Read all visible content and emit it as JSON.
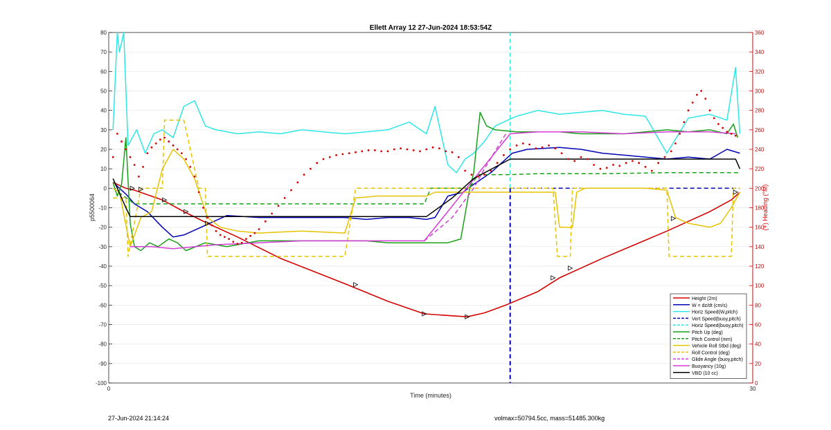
{
  "chart_data": {
    "type": "line",
    "title": "Ellett Array 12 27-Jun-2024 18:53:54Z",
    "xlabel": "Time (minutes)",
    "ylabel": "p5500064",
    "y2label": "(+) Heading (°M)",
    "xlim": [
      0,
      30
    ],
    "ylim": [
      -100,
      80
    ],
    "y2lim": [
      0,
      360
    ],
    "x_ticks": [
      0,
      30
    ],
    "y_ticks": [
      80,
      70,
      60,
      50,
      40,
      30,
      20,
      10,
      0,
      -10,
      -20,
      -30,
      -40,
      -50,
      -60,
      -70,
      -80,
      -90,
      -100
    ],
    "y2_ticks": [
      360,
      340,
      320,
      300,
      280,
      260,
      240,
      220,
      200,
      180,
      160,
      140,
      120,
      100,
      80,
      60,
      40,
      20,
      0
    ],
    "grid": true,
    "legend_position": "bottom-right",
    "vertical_marker_x": 18.7,
    "series": [
      {
        "name": "Height (2m)",
        "color": "#d40000",
        "style": "solid",
        "axis": "left",
        "x": [
          0.2,
          0.8,
          1.2,
          2.5,
          3.5,
          4.6,
          6.0,
          8.0,
          11.0,
          13.0,
          14.7,
          16.0,
          16.7,
          17.5,
          18.5,
          20.0,
          21.0,
          22.0,
          23.0,
          24.5,
          26.0,
          27.0,
          28.0,
          29.0,
          29.4
        ],
        "y": [
          3,
          0,
          -1,
          -6,
          -12,
          -18,
          -25,
          -36,
          -49,
          -58,
          -64.5,
          -65.5,
          -66,
          -64,
          -60,
          -53,
          -46,
          -41,
          -36,
          -29,
          -22,
          -17,
          -12,
          -6,
          -2
        ]
      },
      {
        "name": "W = dz/dt (cm/s)",
        "color": "#0000b4",
        "style": "solid",
        "axis": "left",
        "x": [
          0.3,
          0.8,
          1.2,
          1.8,
          2.5,
          3.0,
          3.5,
          4.5,
          5.5,
          7.0,
          9.0,
          11.0,
          12.0,
          13.0,
          14.0,
          14.8,
          15.2,
          15.8,
          16.5,
          17.0,
          17.8,
          18.8,
          19.5,
          21.0,
          22.0,
          23.0,
          24.0,
          25.0,
          26.0,
          27.0,
          28.0,
          28.8,
          29.4
        ],
        "y": [
          2,
          -3,
          -8,
          -12,
          -20,
          -25,
          -24,
          -19,
          -14,
          -15,
          -15,
          -15,
          -16,
          -15,
          -15,
          -16,
          -15,
          -4,
          -2,
          2,
          8,
          18,
          20,
          21,
          20,
          18,
          17,
          16,
          15,
          16,
          15,
          20,
          18
        ]
      },
      {
        "name": "Horiz Speed(W,pitch)",
        "color": "#2ee6e6",
        "style": "solid",
        "axis": "left",
        "x": [
          0.2,
          0.4,
          0.5,
          0.7,
          0.9,
          1.3,
          1.7,
          2.1,
          2.5,
          3.0,
          3.5,
          4.0,
          4.5,
          5.0,
          6.0,
          7.0,
          8.0,
          9.0,
          10.0,
          11.0,
          12.0,
          13.0,
          14.0,
          14.8,
          15.2,
          15.8,
          16.2,
          16.6,
          17.0,
          17.5,
          18.0,
          19.0,
          20.0,
          21.0,
          22.0,
          23.0,
          24.0,
          25.0,
          26.0,
          27.0,
          28.0,
          28.8,
          29.2,
          29.4
        ],
        "y": [
          30,
          80,
          70,
          80,
          22,
          30,
          18,
          28,
          30,
          26,
          42,
          45,
          32,
          30,
          28,
          29,
          28,
          30,
          29,
          28,
          29,
          30,
          34,
          28,
          42,
          12,
          8,
          15,
          18,
          24,
          32,
          37,
          40,
          38,
          39,
          40,
          38,
          37,
          18,
          36,
          38,
          35,
          62,
          28
        ]
      },
      {
        "name": "Vert Speed(buoy,pitch)",
        "color": "#0000b4",
        "style": "dashed",
        "axis": "left",
        "x": [
          18.7,
          29.4
        ],
        "y": [
          0,
          0
        ]
      },
      {
        "name": "Horiz Speed(buoy,pitch)",
        "color": "#2ee6e6",
        "style": "dashed",
        "axis": "left",
        "x": [
          18.7,
          18.7
        ],
        "y": [
          0,
          80
        ]
      },
      {
        "name": "Pitch Up (deg)",
        "color": "#17a017",
        "style": "solid",
        "axis": "left",
        "x": [
          0.2,
          0.4,
          0.6,
          0.8,
          1.0,
          1.2,
          1.5,
          1.9,
          2.3,
          2.8,
          3.2,
          3.6,
          4.5,
          5.5,
          7.0,
          9.0,
          11.0,
          12.0,
          13.0,
          14.0,
          14.8,
          15.3,
          15.8,
          16.4,
          16.8,
          17.0,
          17.3,
          17.6,
          18.0,
          19.0,
          20.0,
          21.0,
          22.0,
          23.0,
          24.0,
          25.0,
          26.0,
          27.0,
          28.0,
          28.8,
          29.1,
          29.3
        ],
        "y": [
          3,
          -4,
          2,
          26,
          -18,
          -30,
          -32,
          -28,
          -30,
          -26,
          -28,
          -32,
          -28,
          -30,
          -27,
          -27,
          -27,
          -27,
          -28,
          -28,
          -28,
          -28,
          -28,
          -26,
          -1,
          8,
          39,
          32,
          30,
          29,
          29,
          29,
          28,
          28,
          28,
          29,
          30,
          29,
          30,
          28,
          33,
          26
        ]
      },
      {
        "name": "Pitch Control (mm)",
        "color": "#17a017",
        "style": "dashed",
        "axis": "left",
        "x": [
          0.2,
          1.2,
          3.0,
          7.0,
          11.0,
          14.7,
          15.0,
          16.8,
          17.2,
          18.7,
          20.0,
          23.0,
          26.0,
          29.4
        ],
        "y": [
          0,
          -8,
          -8,
          -8,
          -8,
          -8,
          0,
          0,
          7,
          7,
          7.5,
          7.5,
          8,
          8
        ]
      },
      {
        "name": "Vehicle Roll Stbd (deg)",
        "color": "#e6c200",
        "style": "solid",
        "axis": "left",
        "x": [
          0.2,
          0.5,
          1.0,
          1.5,
          2.0,
          2.5,
          3.0,
          3.5,
          4.0,
          4.6,
          5.2,
          6.0,
          7.0,
          9.0,
          11.0,
          11.5,
          12.5,
          14.0,
          14.8,
          15.2,
          16.0,
          17.0,
          18.0,
          19.0,
          20.0,
          20.8,
          21.0,
          21.6,
          21.8,
          22.2,
          23.0,
          24.0,
          25.0,
          26.0,
          26.4,
          27.0,
          28.0,
          28.5,
          29.0,
          29.4
        ],
        "y": [
          0,
          -2,
          -30,
          -15,
          -12,
          10,
          20,
          15,
          5,
          -15,
          -20,
          -22,
          -23,
          -22,
          -23,
          -5,
          -4,
          -4,
          -4,
          -2,
          -2,
          -2,
          -2,
          -2,
          -2,
          -2,
          -20,
          -20,
          -2,
          0,
          0,
          0,
          0,
          -1,
          -15,
          -18,
          -20,
          -18,
          -10,
          -2
        ]
      },
      {
        "name": "Roll Control (deg)",
        "color": "#e6c200",
        "style": "dashed",
        "axis": "left",
        "x": [
          0.2,
          0.8,
          0.9,
          1.5,
          2.5,
          2.6,
          3.5,
          4.2,
          4.5,
          4.6,
          5.5,
          6.0,
          11.0,
          11.5,
          14.7,
          15.0,
          20.7,
          20.9,
          21.5,
          21.6,
          26.0,
          26.1,
          29.0,
          29.1,
          29.4
        ],
        "y": [
          -5,
          -5,
          -35,
          0,
          0,
          35,
          35,
          0,
          0,
          -35,
          -35,
          -35,
          -35,
          0,
          0,
          0,
          0,
          -35,
          -35,
          0,
          0,
          -35,
          -35,
          0,
          0
        ]
      },
      {
        "name": "Glide Angle (buoy,pitch)",
        "color": "#d43ad4",
        "style": "dashed",
        "axis": "left",
        "x": [
          14.7,
          16.0,
          17.0,
          17.5,
          18.5
        ],
        "y": [
          -27,
          -15,
          0,
          10,
          28
        ]
      },
      {
        "name": "Buoyancy (10g)",
        "color": "#d43ad4",
        "style": "solid",
        "axis": "left",
        "x": [
          1.0,
          2.0,
          3.0,
          5.0,
          7.0,
          9.0,
          11.0,
          13.0,
          14.7,
          18.7,
          20.0,
          22.0,
          24.0,
          26.0,
          28.0,
          29.2
        ],
        "y": [
          -30,
          -30,
          -31,
          -29,
          -28,
          -27,
          -27,
          -27,
          -27,
          28,
          29,
          29,
          28,
          29,
          29,
          28
        ]
      },
      {
        "name": "VBD (10 cc)",
        "color": "#000000",
        "style": "solid",
        "axis": "left",
        "x": [
          0.2,
          0.8,
          1.0,
          4.0,
          8.0,
          11.0,
          14.8,
          16.0,
          17.0,
          18.7,
          22.0,
          26.0,
          29.2,
          29.4
        ],
        "y": [
          5,
          -10,
          -14.5,
          -14.5,
          -14.5,
          -14.5,
          -14.5,
          -5,
          5,
          15,
          15,
          15,
          15,
          10
        ]
      }
    ],
    "heading_series": {
      "name": "(+) Heading (°M)",
      "color": "#d40000",
      "style": "dotted-markers",
      "axis": "right",
      "x": [
        0.2,
        0.4,
        0.6,
        0.8,
        1.0,
        1.2,
        1.4,
        1.6,
        1.8,
        2.0,
        2.2,
        2.4,
        2.6,
        2.8,
        3.0,
        3.2,
        3.4,
        3.6,
        3.8,
        4.0,
        4.2,
        4.4,
        4.6,
        4.8,
        5.0,
        5.2,
        5.4,
        5.6,
        5.8,
        6.0,
        6.2,
        6.4,
        6.6,
        6.8,
        7.0,
        7.3,
        7.6,
        7.9,
        8.2,
        8.5,
        8.8,
        9.1,
        9.4,
        9.7,
        10.0,
        10.3,
        10.6,
        10.9,
        11.2,
        11.5,
        11.8,
        12.1,
        12.4,
        12.7,
        13.0,
        13.3,
        13.6,
        13.9,
        14.2,
        14.5,
        14.8,
        15.1,
        15.4,
        15.7,
        16.0,
        16.3,
        16.6,
        16.9,
        17.2,
        17.5,
        17.8,
        18.1,
        18.4,
        18.7,
        19.0,
        19.3,
        19.6,
        19.9,
        20.2,
        20.5,
        20.8,
        21.1,
        21.4,
        21.7,
        22.0,
        22.3,
        22.6,
        22.9,
        23.2,
        23.5,
        23.8,
        24.1,
        24.4,
        24.7,
        25.0,
        25.3,
        25.6,
        25.9,
        26.2,
        26.4,
        26.6,
        26.8,
        27.0,
        27.2,
        27.4,
        27.6,
        27.8,
        28.0,
        28.2,
        28.4,
        28.6,
        28.8,
        29.0,
        29.2
      ],
      "y": [
        232,
        256,
        248,
        240,
        232,
        224,
        212,
        222,
        236,
        242,
        246,
        250,
        252,
        248,
        244,
        240,
        236,
        230,
        222,
        212,
        196,
        180,
        170,
        162,
        156,
        152,
        150,
        148,
        145,
        143,
        144,
        148,
        151,
        154,
        158,
        166,
        174,
        182,
        190,
        198,
        206,
        214,
        220,
        226,
        230,
        232,
        234,
        235,
        236,
        237,
        238,
        239,
        239,
        238,
        238,
        240,
        241,
        240,
        239,
        238,
        240,
        242,
        241,
        238,
        237,
        232,
        218,
        214,
        212,
        214,
        218,
        226,
        234,
        240,
        244,
        246,
        245,
        241,
        242,
        244,
        241,
        236,
        230,
        228,
        232,
        230,
        224,
        220,
        221,
        224,
        223,
        226,
        228,
        226,
        222,
        218,
        226,
        232,
        238,
        246,
        256,
        268,
        280,
        288,
        296,
        300,
        292,
        280,
        272,
        266,
        262,
        258,
        256,
        254
      ]
    },
    "markers": {
      "series": "Height (2m)",
      "symbol": "triangle",
      "x": [
        1.1,
        1.5,
        2.6,
        3.6,
        4.6,
        11.5,
        14.7,
        16.7,
        20.7,
        21.5,
        26.3,
        29.2
      ],
      "y": [
        0,
        -0.5,
        -6,
        -12,
        -18,
        -49.5,
        -64.5,
        -66,
        -46,
        -41,
        -15.5,
        -2
      ]
    }
  },
  "footer": {
    "left": "27-Jun-2024 21:14:24",
    "right": "volmax=50794.5cc, mass=51485.300kg"
  }
}
